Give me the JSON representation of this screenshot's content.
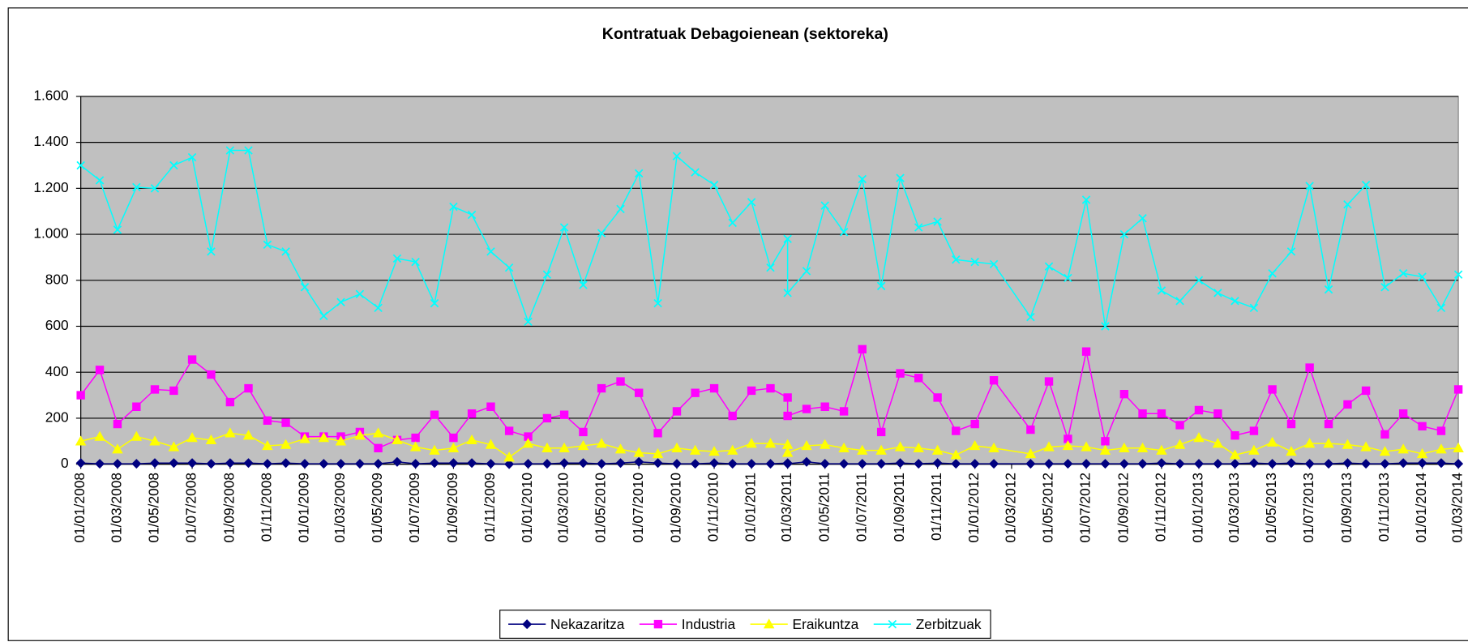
{
  "chart_data": {
    "type": "line",
    "title": "Kontratuak Debagoienean (sektoreka)",
    "x": [
      "01/01/2008",
      "01/02/2008",
      "01/03/2008",
      "01/04/2008",
      "01/05/2008",
      "01/06/2008",
      "01/07/2008",
      "01/08/2008",
      "01/09/2008",
      "01/10/2008",
      "01/11/2008",
      "01/12/2008",
      "01/01/2009",
      "01/02/2009",
      "01/03/2009",
      "01/04/2009",
      "01/05/2009",
      "01/06/2009",
      "01/07/2009",
      "01/08/2009",
      "01/09/2009",
      "01/10/2009",
      "01/11/2009",
      "01/12/2009",
      "01/01/2010",
      "01/02/2010",
      "01/03/2010",
      "01/04/2010",
      "01/05/2010",
      "01/06/2010",
      "01/07/2010",
      "01/08/2010",
      "01/09/2010",
      "01/10/2010",
      "01/11/2010",
      "01/12/2010",
      "01/01/2011",
      "01/02/2011",
      "01/03/2011",
      "01/03/2011",
      "01/04/2011",
      "01/05/2011",
      "01/06/2011",
      "01/07/2011",
      "01/08/2011",
      "01/09/2011",
      "01/10/2011",
      "01/11/2011",
      "01/12/2011",
      "01/01/2012",
      "01/02/2012",
      "01/04/2012",
      "01/05/2012",
      "01/06/2012",
      "01/07/2012",
      "01/08/2012",
      "01/09/2012",
      "01/10/2012",
      "01/11/2012",
      "01/12/2012",
      "01/01/2013",
      "01/02/2013",
      "01/03/2013",
      "01/04/2013",
      "01/05/2013",
      "01/06/2013",
      "01/07/2013",
      "01/08/2013",
      "01/09/2013",
      "01/10/2013",
      "01/11/2013",
      "01/12/2013",
      "01/01/2014",
      "01/02/2014",
      "01/03/2014"
    ],
    "xlim": [
      "01/01/2008",
      "01/03/2014"
    ],
    "xticks": [
      "01/01/2008",
      "01/03/2008",
      "01/05/2008",
      "01/07/2008",
      "01/09/2008",
      "01/11/2008",
      "01/01/2009",
      "01/03/2009",
      "01/05/2009",
      "01/07/2009",
      "01/09/2009",
      "01/11/2009",
      "01/01/2010",
      "01/03/2010",
      "01/05/2010",
      "01/07/2010",
      "01/09/2010",
      "01/11/2010",
      "01/01/2011",
      "01/03/2011",
      "01/05/2011",
      "01/07/2011",
      "01/09/2011",
      "01/11/2011",
      "01/01/2012",
      "01/03/2012",
      "01/05/2012",
      "01/07/2012",
      "01/09/2012",
      "01/11/2012",
      "01/01/2013",
      "01/03/2013",
      "01/05/2013",
      "01/07/2013",
      "01/09/2013",
      "01/11/2013",
      "01/01/2014",
      "01/03/2014"
    ],
    "ylim": [
      0,
      1600
    ],
    "yticks": [
      0,
      200,
      400,
      600,
      800,
      {
        "value": 1000,
        "label": "1.000"
      },
      {
        "value": 1200,
        "label": "1.200"
      },
      {
        "value": 1400,
        "label": "1.400"
      },
      {
        "value": 1600,
        "label": "1.600"
      }
    ],
    "grid": true,
    "plot_background": "#c0c0c0",
    "legend": "bottom",
    "series": [
      {
        "name": "Nekazaritza",
        "color": "#000080",
        "marker": "diamond",
        "values": [
          5,
          2,
          2,
          2,
          5,
          5,
          5,
          2,
          5,
          5,
          2,
          5,
          2,
          2,
          2,
          2,
          2,
          10,
          2,
          5,
          5,
          5,
          2,
          0,
          2,
          2,
          5,
          5,
          2,
          5,
          10,
          5,
          2,
          2,
          5,
          2,
          2,
          2,
          5,
          2,
          10,
          2,
          2,
          2,
          2,
          5,
          2,
          5,
          2,
          2,
          2,
          2,
          2,
          2,
          2,
          2,
          2,
          2,
          5,
          2,
          2,
          2,
          2,
          5,
          2,
          5,
          2,
          2,
          5,
          2,
          2,
          5,
          5,
          5,
          2
        ]
      },
      {
        "name": "Industria",
        "color": "#ff00ff",
        "marker": "square",
        "values": [
          300,
          410,
          175,
          250,
          325,
          320,
          455,
          390,
          270,
          330,
          190,
          180,
          120,
          120,
          120,
          140,
          70,
          105,
          115,
          215,
          115,
          220,
          250,
          145,
          120,
          200,
          215,
          140,
          330,
          360,
          310,
          135,
          230,
          310,
          330,
          210,
          320,
          330,
          290,
          210,
          240,
          250,
          230,
          500,
          140,
          395,
          375,
          290,
          145,
          175,
          365,
          150,
          360,
          110,
          490,
          100,
          305,
          220,
          220,
          170,
          235,
          220,
          125,
          145,
          325,
          175,
          420,
          175,
          260,
          320,
          130,
          220,
          165,
          145,
          325
        ]
      },
      {
        "name": "Eraikuntza",
        "color": "#ffff00",
        "marker": "triangle",
        "values": [
          100,
          120,
          65,
          120,
          100,
          75,
          115,
          105,
          135,
          125,
          80,
          85,
          110,
          115,
          100,
          125,
          135,
          105,
          75,
          60,
          70,
          105,
          85,
          30,
          90,
          70,
          70,
          80,
          90,
          65,
          50,
          45,
          70,
          60,
          55,
          60,
          90,
          90,
          85,
          50,
          80,
          85,
          70,
          60,
          60,
          75,
          70,
          60,
          40,
          80,
          70,
          45,
          75,
          80,
          75,
          60,
          70,
          70,
          60,
          85,
          115,
          90,
          40,
          60,
          95,
          55,
          90,
          90,
          85,
          75,
          55,
          65,
          45,
          65,
          70
        ]
      },
      {
        "name": "Zerbitzuak",
        "color": "#00ffff",
        "marker": "cross",
        "values": [
          1300,
          1235,
          1020,
          1205,
          1200,
          1300,
          1335,
          925,
          1365,
          1365,
          955,
          925,
          770,
          645,
          705,
          740,
          680,
          895,
          880,
          700,
          1120,
          1085,
          925,
          855,
          620,
          825,
          1030,
          780,
          1005,
          1110,
          1265,
          700,
          1340,
          1270,
          1215,
          1050,
          1140,
          855,
          980,
          745,
          840,
          1125,
          1010,
          1240,
          775,
          1245,
          1030,
          1055,
          890,
          880,
          870,
          640,
          860,
          810,
          1150,
          600,
          1000,
          1070,
          755,
          710,
          800,
          745,
          710,
          680,
          830,
          925,
          1210,
          760,
          1130,
          1215,
          770,
          830,
          815,
          680,
          825
        ]
      }
    ]
  }
}
